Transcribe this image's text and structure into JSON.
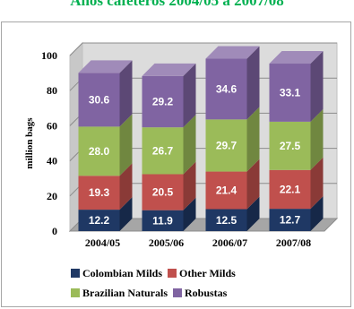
{
  "chart_data": {
    "type": "bar",
    "stacked": true,
    "title": "Años cafeteros 2004/05 a 2007/08",
    "ylabel": "million bags",
    "xlabel": "",
    "ylim": [
      0,
      100
    ],
    "yticks": [
      0,
      20,
      40,
      60,
      80,
      100
    ],
    "categories": [
      "2004/05",
      "2005/06",
      "2006/07",
      "2007/08"
    ],
    "series": [
      {
        "name": "Colombian Milds",
        "values": [
          12.2,
          11.9,
          12.5,
          12.7
        ],
        "color": "#1f3864",
        "label_color": "#ffffff"
      },
      {
        "name": "Other Milds",
        "values": [
          19.3,
          20.5,
          21.4,
          22.1
        ],
        "color": "#c0504d",
        "label_color": "#ffffff"
      },
      {
        "name": "Brazilian Naturals",
        "values": [
          28.0,
          26.7,
          29.7,
          27.5
        ],
        "color": "#9bbb59",
        "label_color": "#ffffff"
      },
      {
        "name": "Robustas",
        "values": [
          30.6,
          29.2,
          34.6,
          33.1
        ],
        "color": "#8064a2",
        "label_color": "#ffffff"
      }
    ],
    "grid": true,
    "legend_position": "bottom"
  }
}
